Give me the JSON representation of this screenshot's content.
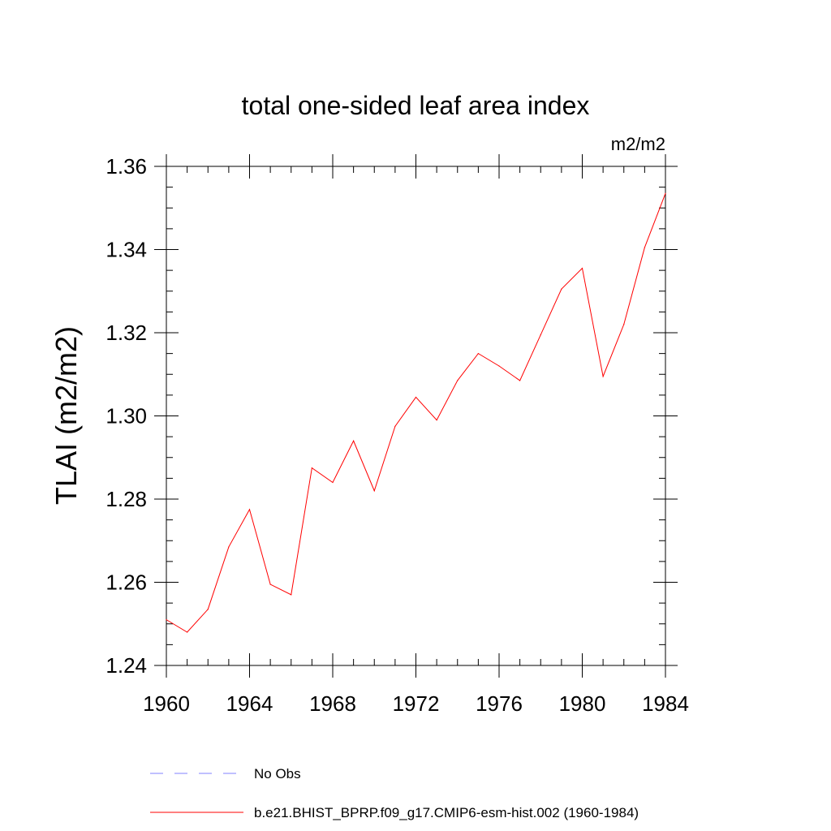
{
  "chart_data": {
    "type": "line",
    "title": "total one-sided leaf area index",
    "units_label": "m2/m2",
    "ylabel": "TLAI  (m2/m2)",
    "xlabel": "",
    "xlim": [
      1960,
      1984
    ],
    "ylim": [
      1.24,
      1.36
    ],
    "xticks": [
      1960,
      1964,
      1968,
      1972,
      1976,
      1980,
      1984
    ],
    "yticks": [
      "1.24",
      "1.26",
      "1.28",
      "1.30",
      "1.32",
      "1.34",
      "1.36"
    ],
    "grid": false,
    "legend_placement": "bottom",
    "series": [
      {
        "name": "b.e21.BHIST_BPRP.f09_g17.CMIP6-esm-hist.002 (1960-1984)",
        "color": "#ff0000",
        "style": "solid",
        "x": [
          1960,
          1961,
          1962,
          1963,
          1964,
          1965,
          1966,
          1967,
          1968,
          1969,
          1970,
          1971,
          1972,
          1973,
          1974,
          1975,
          1976,
          1977,
          1978,
          1979,
          1980,
          1981,
          1982,
          1983,
          1984
        ],
        "y": [
          1.251,
          1.248,
          1.2535,
          1.2685,
          1.2775,
          1.2595,
          1.257,
          1.2875,
          1.284,
          1.294,
          1.282,
          1.2975,
          1.3045,
          1.299,
          1.3085,
          1.315,
          1.312,
          1.3085,
          1.3195,
          1.3305,
          1.3355,
          1.3095,
          1.322,
          1.3405,
          1.3535
        ]
      }
    ],
    "legend": [
      {
        "label": "No Obs",
        "color": "#8080ff",
        "style": "dashed"
      },
      {
        "label": "b.e21.BHIST_BPRP.f09_g17.CMIP6-esm-hist.002 (1960-1984)",
        "color": "#ff0000",
        "style": "solid"
      }
    ]
  }
}
